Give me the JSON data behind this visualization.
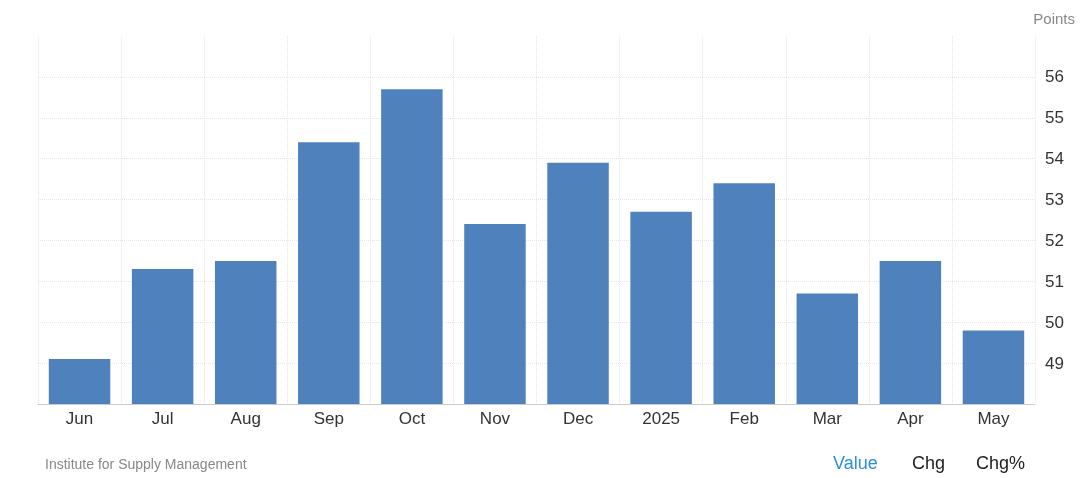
{
  "chart_data": {
    "type": "bar",
    "ylabel": "Points",
    "categories": [
      "Jun",
      "Jul",
      "Aug",
      "Sep",
      "Oct",
      "Nov",
      "Dec",
      "2025",
      "Feb",
      "Mar",
      "Apr",
      "May"
    ],
    "values": [
      49.1,
      51.3,
      51.5,
      54.4,
      55.7,
      52.4,
      53.9,
      52.7,
      53.4,
      50.7,
      51.5,
      49.8
    ],
    "color": "#4f81bd",
    "ylim": [
      48,
      57
    ],
    "yticks": [
      49,
      50,
      51,
      52,
      53,
      54,
      55,
      56
    ],
    "grid": true,
    "annotations": [
      "Institute for Supply Management",
      "Value",
      "Chg",
      "Chg%"
    ]
  }
}
